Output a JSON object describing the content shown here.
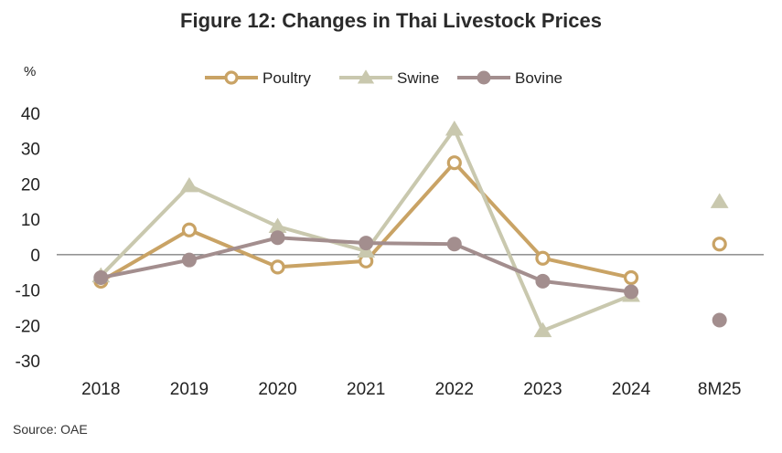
{
  "chart_data": {
    "type": "line",
    "title": "Figure 12: Changes in Thai Livestock Prices",
    "ylabel": "%",
    "xlabel": "",
    "categories": [
      "2018",
      "2019",
      "2020",
      "2021",
      "2022",
      "2023",
      "2024",
      "8M25"
    ],
    "ylim": [
      -30,
      40
    ],
    "yticks": [
      40,
      30,
      20,
      10,
      0,
      -10,
      -20,
      -30
    ],
    "legend_position": "top",
    "series": [
      {
        "name": "Poultry",
        "color": "#C9A365",
        "marker": "open-circle",
        "values": [
          -7.5,
          7,
          -3.5,
          -1.8,
          26,
          -1,
          -6.5,
          3
        ]
      },
      {
        "name": "Swine",
        "color": "#C9C8AE",
        "marker": "triangle",
        "values": [
          -6,
          19.5,
          8,
          1,
          35.5,
          -21.5,
          -11.5,
          15
        ]
      },
      {
        "name": "Bovine",
        "color": "#A38E8E",
        "marker": "filled-circle",
        "values": [
          -6.5,
          -1.5,
          4.8,
          3.3,
          3,
          -7.5,
          -10.5,
          -18.5
        ]
      }
    ],
    "disconnected_last_point": true
  },
  "source": "Source: OAE"
}
